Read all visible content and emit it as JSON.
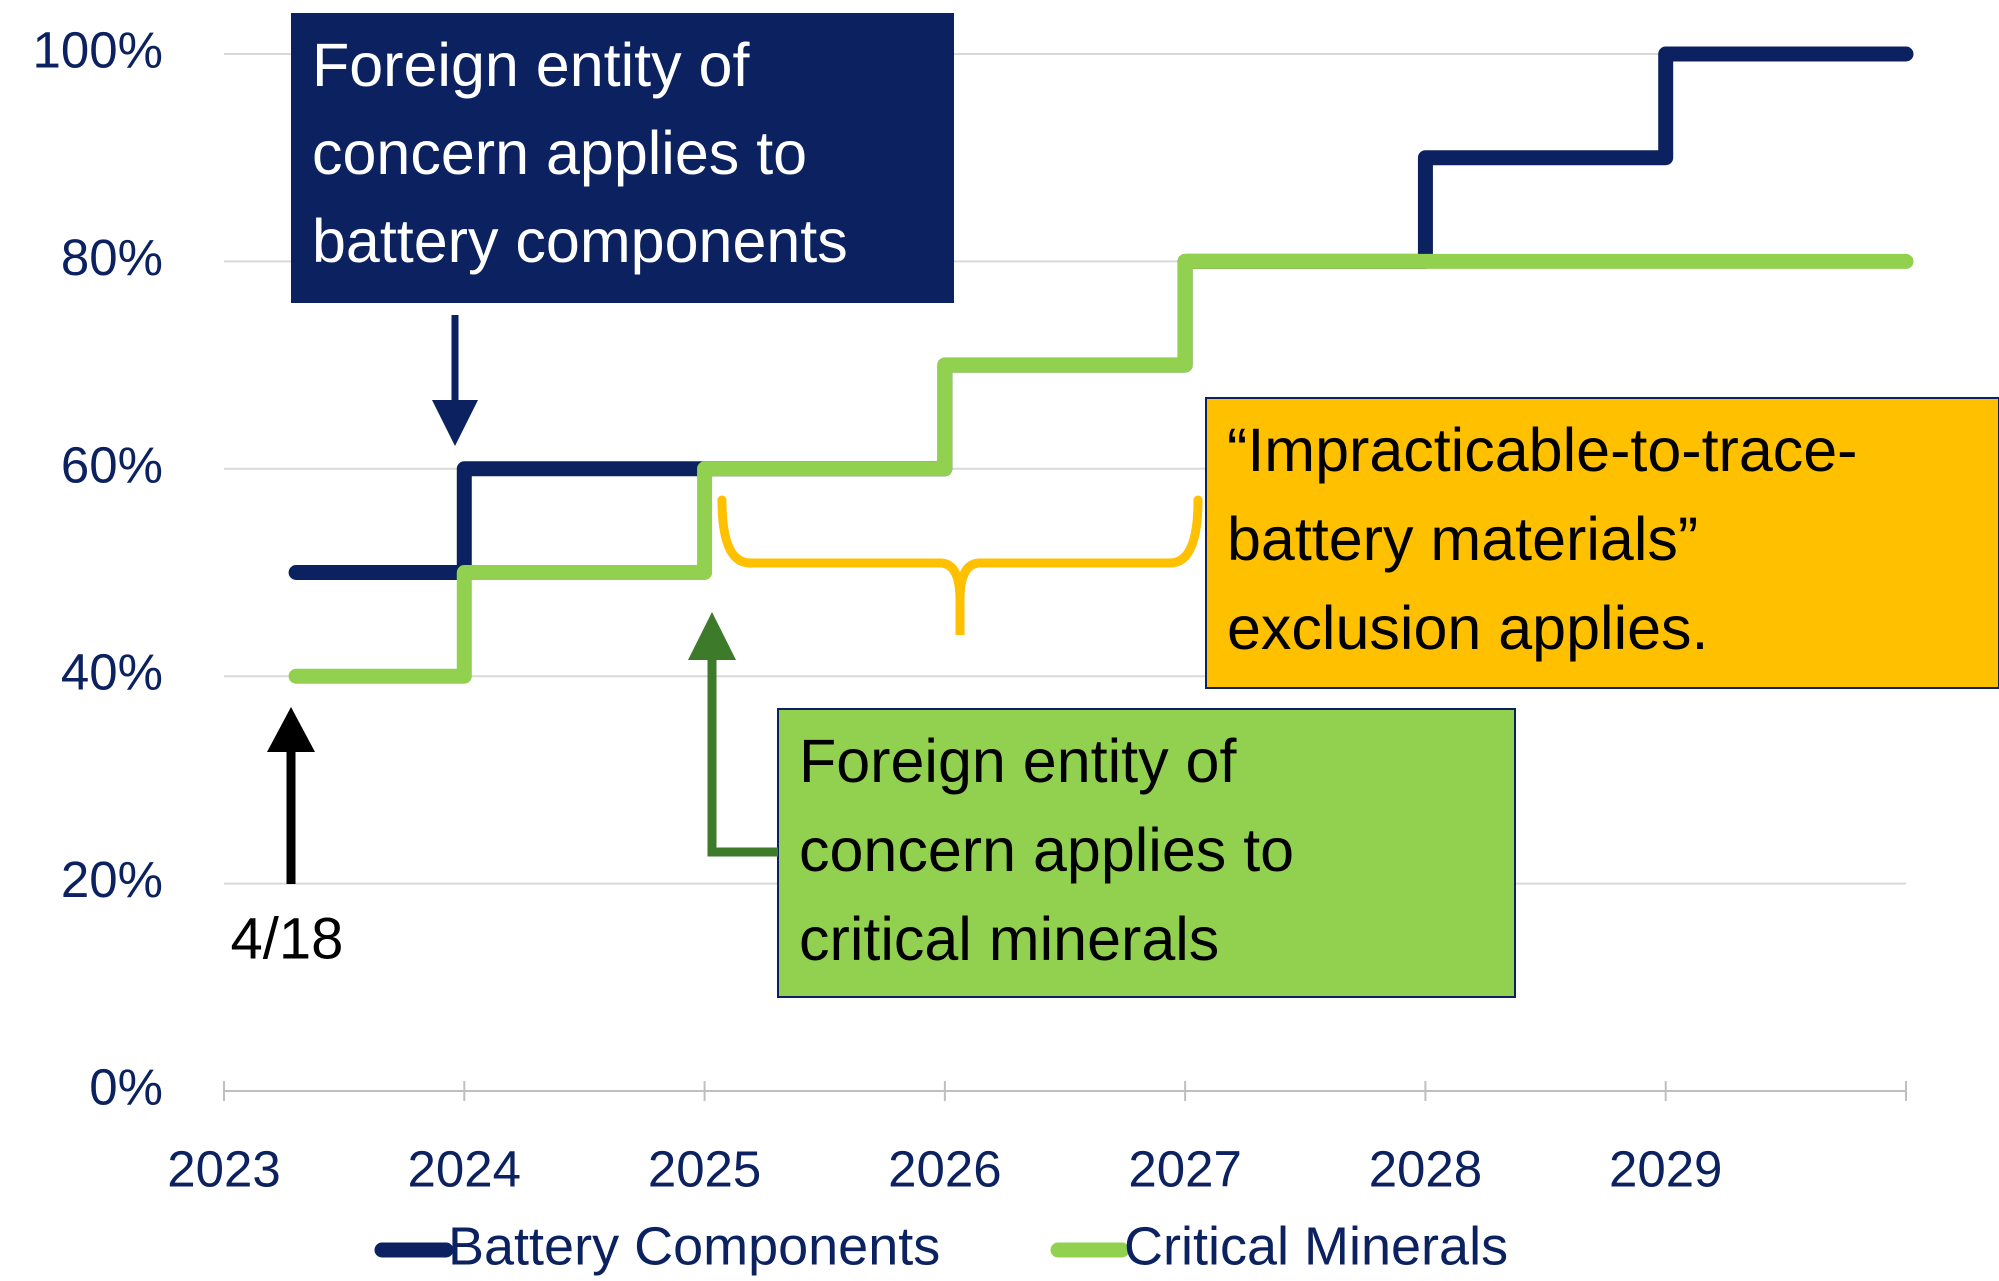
{
  "chart_data": {
    "type": "line",
    "step": "post",
    "x": [
      2023.3,
      2024,
      2025,
      2026,
      2027,
      2028,
      2029,
      2030
    ],
    "series": [
      {
        "name": "Battery Components",
        "color": "#0c2260",
        "values": [
          50,
          60,
          60,
          70,
          80,
          90,
          100,
          100
        ]
      },
      {
        "name": "Critical Minerals",
        "color": "#92d050",
        "values": [
          40,
          50,
          60,
          70,
          80,
          80,
          80,
          80
        ]
      }
    ],
    "xlim": [
      2023,
      2030
    ],
    "xticks": [
      2023,
      2024,
      2025,
      2026,
      2027,
      2028,
      2029
    ],
    "ylim": [
      0,
      100
    ],
    "yticks": [
      {
        "value": 0,
        "label": "0%"
      },
      {
        "value": 20,
        "label": "20%"
      },
      {
        "value": 40,
        "label": "40%"
      },
      {
        "value": 60,
        "label": "60%"
      },
      {
        "value": 80,
        "label": "80%"
      },
      {
        "value": 100,
        "label": "100%"
      }
    ],
    "grid": true,
    "legend": "bottom",
    "annotations": [
      {
        "lines": [
          "Foreign entity of",
          "concern applies to",
          "battery components"
        ]
      },
      {
        "lines": [
          "“Impracticable-to-trace-",
          "battery materials”",
          "exclusion applies."
        ]
      },
      {
        "lines": [
          "Foreign entity of",
          "concern applies to",
          "critical minerals"
        ]
      },
      {
        "lines": [
          "4/18"
        ]
      }
    ]
  }
}
